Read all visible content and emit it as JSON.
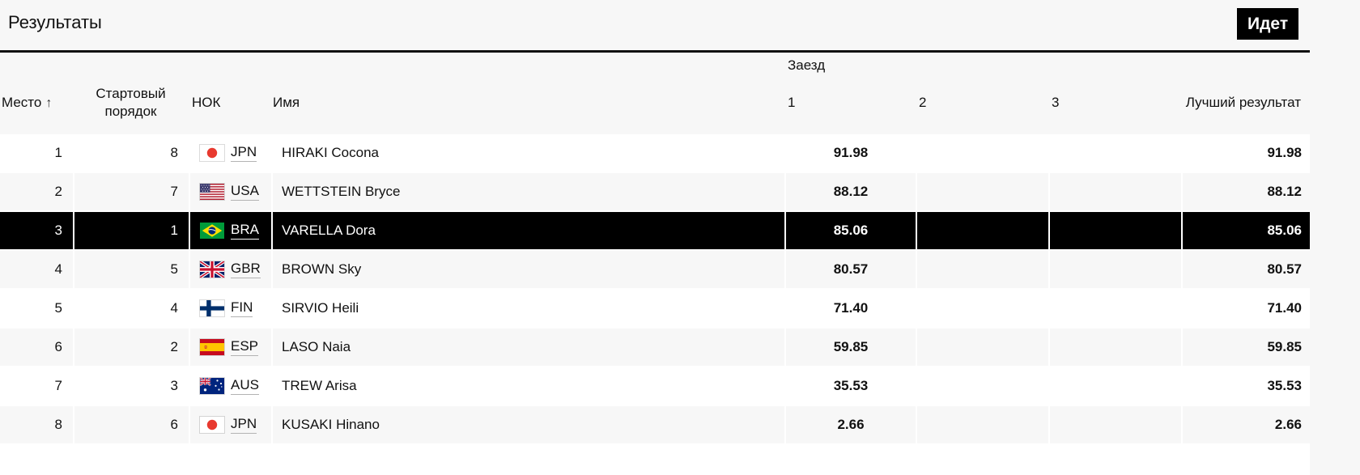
{
  "page": {
    "title": "Результаты",
    "status_badge": "Идет"
  },
  "table": {
    "group_header": {
      "runs": "Заезд"
    },
    "columns": {
      "place": "Место",
      "place_sort_arrow": "↑",
      "start_order": "Стартовый порядок",
      "noc": "НОК",
      "name": "Имя",
      "run1": "1",
      "run2": "2",
      "run3": "3",
      "best": "Лучший результат"
    },
    "rows": [
      {
        "place": "1",
        "start_order": "8",
        "noc": "JPN",
        "flag_icon": "flag-jpn",
        "name": "HIRAKI Cocona",
        "run1": "91.98",
        "run2": "",
        "run3": "",
        "best": "91.98",
        "highlighted": false
      },
      {
        "place": "2",
        "start_order": "7",
        "noc": "USA",
        "flag_icon": "flag-usa",
        "name": "WETTSTEIN Bryce",
        "run1": "88.12",
        "run2": "",
        "run3": "",
        "best": "88.12",
        "highlighted": false
      },
      {
        "place": "3",
        "start_order": "1",
        "noc": "BRA",
        "flag_icon": "flag-bra",
        "name": "VARELLA Dora",
        "run1": "85.06",
        "run2": "",
        "run3": "",
        "best": "85.06",
        "highlighted": true
      },
      {
        "place": "4",
        "start_order": "5",
        "noc": "GBR",
        "flag_icon": "flag-gbr",
        "name": "BROWN Sky",
        "run1": "80.57",
        "run2": "",
        "run3": "",
        "best": "80.57",
        "highlighted": false
      },
      {
        "place": "5",
        "start_order": "4",
        "noc": "FIN",
        "flag_icon": "flag-fin",
        "name": "SIRVIO Heili",
        "run1": "71.40",
        "run2": "",
        "run3": "",
        "best": "71.40",
        "highlighted": false
      },
      {
        "place": "6",
        "start_order": "2",
        "noc": "ESP",
        "flag_icon": "flag-esp",
        "name": "LASO Naia",
        "run1": "59.85",
        "run2": "",
        "run3": "",
        "best": "59.85",
        "highlighted": false
      },
      {
        "place": "7",
        "start_order": "3",
        "noc": "AUS",
        "flag_icon": "flag-aus",
        "name": "TREW Arisa",
        "run1": "35.53",
        "run2": "",
        "run3": "",
        "best": "35.53",
        "highlighted": false
      },
      {
        "place": "8",
        "start_order": "6",
        "noc": "JPN",
        "flag_icon": "flag-jpn",
        "name": "KUSAKI Hinano",
        "run1": "2.66",
        "run2": "",
        "run3": "",
        "best": "2.66",
        "highlighted": false
      }
    ]
  },
  "colors": {
    "page_bg": "#f7f7f7",
    "row_alt_bg": "#f7f7f7",
    "status_badge_bg": "#000000",
    "status_badge_text": "#ffffff",
    "highlight_row_bg": "#000000",
    "highlight_row_text": "#ffffff",
    "rule_color": "#111111"
  }
}
